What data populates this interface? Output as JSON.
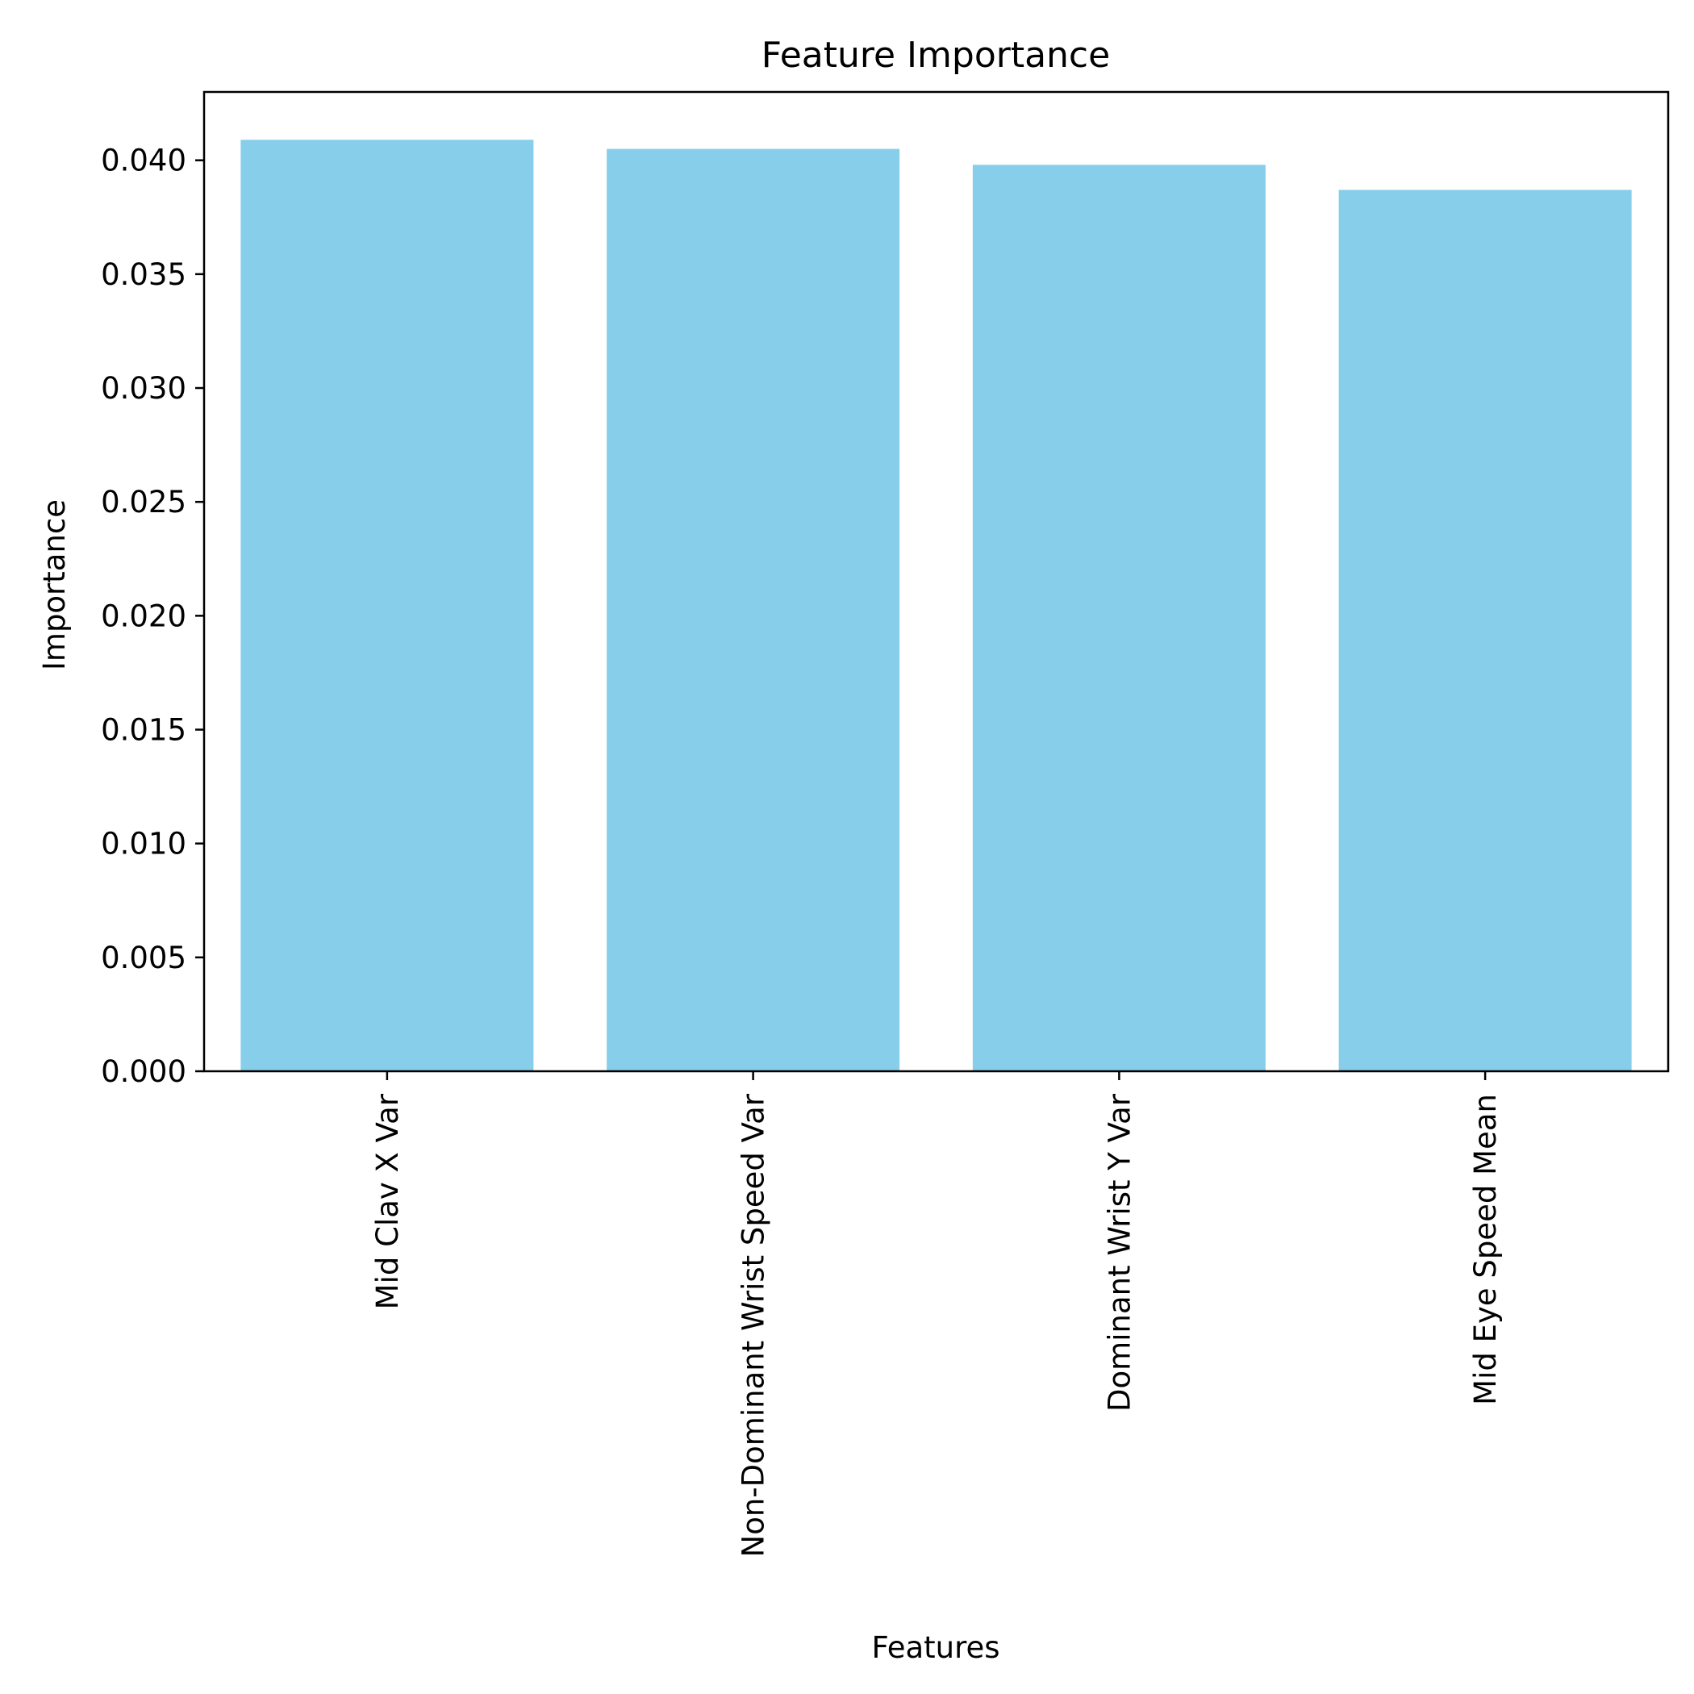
{
  "chart_data": {
    "type": "bar",
    "title": "Feature Importance",
    "xlabel": "Features",
    "ylabel": "Importance",
    "categories": [
      "Mid Clav X Var",
      "Non-Dominant Wrist Speed Var",
      "Dominant Wrist Y Var",
      "Mid Eye Speed Mean"
    ],
    "values": [
      0.0409,
      0.0405,
      0.0398,
      0.0387
    ],
    "ylim": [
      0,
      0.043
    ],
    "yticks": [
      "0.000",
      "0.005",
      "0.010",
      "0.015",
      "0.020",
      "0.025",
      "0.030",
      "0.035",
      "0.040"
    ],
    "bar_color": "#87CEEB",
    "grid": false,
    "legend": "none"
  }
}
